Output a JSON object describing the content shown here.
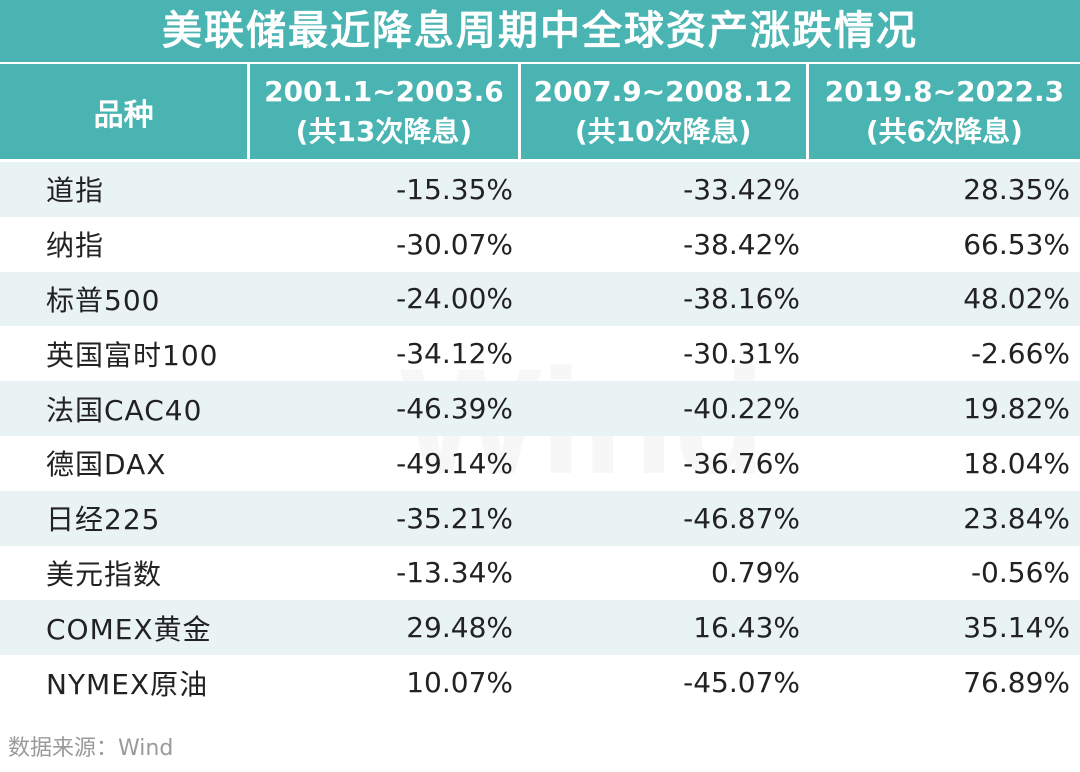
{
  "title": "美联储最近降息周期中全球资产涨跌情况",
  "header": {
    "col0": "品种",
    "col1": {
      "line1": "2001.1~2003.6",
      "line2": "(共13次降息)"
    },
    "col2": {
      "line1": "2007.9~2008.12",
      "line2": "(共10次降息)"
    },
    "col3": {
      "line1": "2019.8~2022.3",
      "line2": "(共6次降息)"
    }
  },
  "rows": [
    {
      "name": "道指",
      "v1": "-15.35%",
      "v2": "-33.42%",
      "v3": "28.35%"
    },
    {
      "name": "纳指",
      "v1": "-30.07%",
      "v2": "-38.42%",
      "v3": "66.53%"
    },
    {
      "name": "标普500",
      "v1": "-24.00%",
      "v2": "-38.16%",
      "v3": "48.02%"
    },
    {
      "name": "英国富时100",
      "v1": "-34.12%",
      "v2": "-30.31%",
      "v3": "-2.66%"
    },
    {
      "name": "法国CAC40",
      "v1": "-46.39%",
      "v2": "-40.22%",
      "v3": "19.82%"
    },
    {
      "name": "德国DAX",
      "v1": "-49.14%",
      "v2": "-36.76%",
      "v3": "18.04%"
    },
    {
      "name": "日经225",
      "v1": "-35.21%",
      "v2": "-46.87%",
      "v3": "23.84%"
    },
    {
      "name": "美元指数",
      "v1": "-13.34%",
      "v2": "0.79%",
      "v3": "-0.56%"
    },
    {
      "name": "COMEX黄金",
      "v1": "29.48%",
      "v2": "16.43%",
      "v3": "35.14%"
    },
    {
      "name": "NYMEX原油",
      "v1": "10.07%",
      "v2": "-45.07%",
      "v3": "76.89%"
    }
  ],
  "source": "数据来源：Wind",
  "watermark": "Wind",
  "colors": {
    "header_bg": "#4ab4b3",
    "alt_row_bg": "#eaf3f3"
  }
}
